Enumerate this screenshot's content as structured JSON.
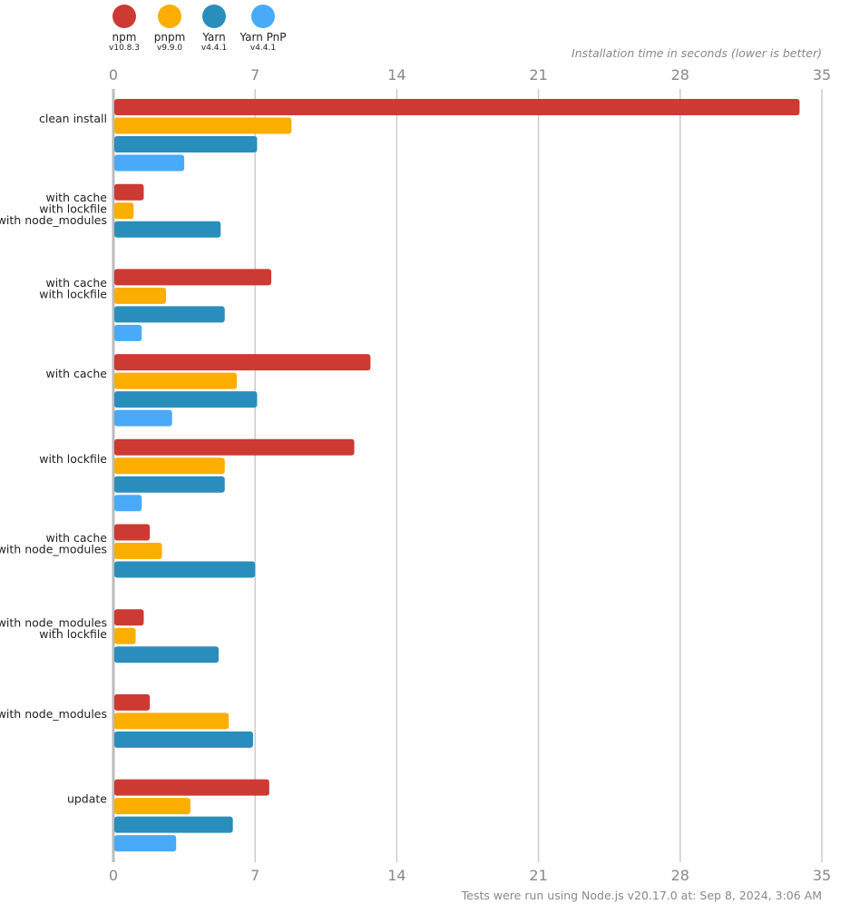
{
  "chart_data": {
    "type": "bar",
    "orientation": "horizontal",
    "title": "Installation time in seconds (lower is better)",
    "footer": "Tests were run using Node.js v20.17.0 at: Sep 8, 2024, 3:06 AM",
    "xlabel": "Installation time in seconds (lower is better)",
    "ylabel": "",
    "xlim": [
      0,
      35
    ],
    "xticks": [
      0,
      7,
      14,
      21,
      28,
      35
    ],
    "grid": true,
    "legend_position": "top-left",
    "categories": [
      [
        "clean install"
      ],
      [
        "with cache",
        "with lockfile",
        "with node_modules"
      ],
      [
        "with cache",
        "with lockfile"
      ],
      [
        "with cache"
      ],
      [
        "with lockfile"
      ],
      [
        "with cache",
        "with node_modules"
      ],
      [
        "with node_modules",
        "with lockfile"
      ],
      [
        "with node_modules"
      ],
      [
        "update"
      ]
    ],
    "series": [
      {
        "name": "npm",
        "version": "v10.8.3",
        "color": "#cc3a33",
        "values": [
          33.9,
          1.5,
          7.8,
          12.7,
          11.9,
          1.8,
          1.5,
          1.8,
          7.7
        ]
      },
      {
        "name": "pnpm",
        "version": "v9.9.0",
        "color": "#fbae00",
        "values": [
          8.8,
          1.0,
          2.6,
          6.1,
          5.5,
          2.4,
          1.1,
          5.7,
          3.8
        ]
      },
      {
        "name": "Yarn",
        "version": "v4.4.1",
        "color": "#2a8ebd",
        "values": [
          7.1,
          5.3,
          5.5,
          7.1,
          5.5,
          7.0,
          5.2,
          6.9,
          5.9
        ]
      },
      {
        "name": "Yarn PnP",
        "version": "v4.4.1",
        "color": "#48aaf8",
        "values": [
          3.5,
          null,
          1.4,
          2.9,
          1.4,
          null,
          null,
          null,
          3.1
        ]
      }
    ]
  }
}
